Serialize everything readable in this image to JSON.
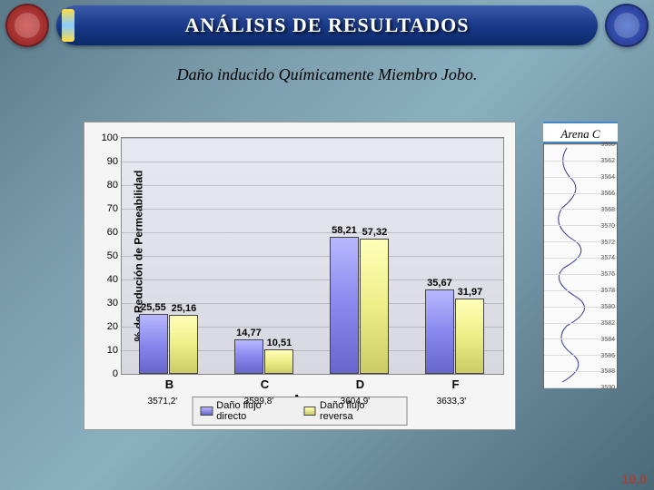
{
  "header": {
    "title": "ANÁLISIS DE RESULTADOS",
    "title_fontsize": 22,
    "title_color": "#ffffff",
    "banner_gradient": [
      "#3a5aaa",
      "#0a2a6a"
    ]
  },
  "subtitle": {
    "text": "Daño inducido Químicamente Miembro Jobo.",
    "fontsize": 18,
    "font_style": "italic"
  },
  "chart": {
    "type": "bar",
    "y_axis_title": "% de Redución de Permeabilidad",
    "x_axis_title": "Arenas",
    "ylim": [
      0,
      100
    ],
    "ytick_step": 10,
    "categories": [
      "B",
      "C",
      "D",
      "F"
    ],
    "depths": [
      "3571,2'",
      "3589,8'",
      "3604,9'",
      "3633,3'"
    ],
    "series": [
      {
        "name": "Daño flujo directo",
        "color_top": "#b8b8ff",
        "color_bottom": "#6666cc",
        "values": [
          25.55,
          14.77,
          58.21,
          35.67
        ]
      },
      {
        "name": "Daño flujo reversa",
        "color_top": "#ffffb8",
        "color_bottom": "#cccc66",
        "values": [
          25.16,
          10.51,
          57.32,
          31.97
        ]
      }
    ],
    "bar_labels": [
      [
        "25,55",
        "25,16"
      ],
      [
        "14,77",
        "10,51"
      ],
      [
        "58,21",
        "57,32"
      ],
      [
        "35,67",
        "31,97"
      ]
    ],
    "plot_bg_top": "#e8e8f0",
    "plot_bg_bottom": "#d8d8e0",
    "grid_color": "rgba(120,120,130,0.35)",
    "label_fontsize": 11
  },
  "well_log": {
    "label": "Arena C",
    "top_depth": 3560,
    "bottom_depth": 3590,
    "tick_step": 2,
    "curve_color": "#3a3a9a"
  },
  "corner_num": "10.0"
}
